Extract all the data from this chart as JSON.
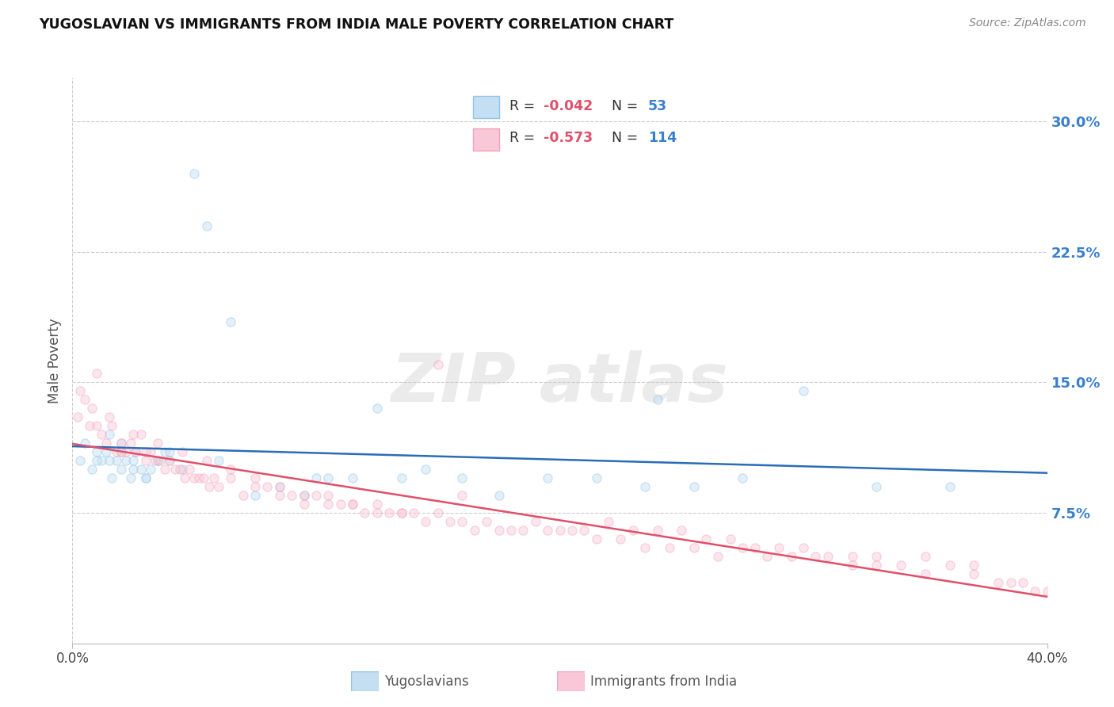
{
  "title": "YUGOSLAVIAN VS IMMIGRANTS FROM INDIA MALE POVERTY CORRELATION CHART",
  "source": "Source: ZipAtlas.com",
  "ylabel": "Male Poverty",
  "xlim": [
    0.0,
    40.0
  ],
  "ylim": [
    0.0,
    32.5
  ],
  "yticks": [
    7.5,
    15.0,
    22.5,
    30.0
  ],
  "blue_line_start_y": 11.2,
  "blue_line_end_y": 10.3,
  "pink_line_start_y": 12.0,
  "pink_line_end_y": 1.5,
  "series": [
    {
      "label": "Yugoslavians",
      "R": -0.042,
      "N": 53,
      "color": "#8ec4e8",
      "color_fill": "#c5dff2",
      "line_color": "#2a6db5",
      "x": [
        0.3,
        0.5,
        0.8,
        1.0,
        1.2,
        1.4,
        1.5,
        1.6,
        1.8,
        2.0,
        2.0,
        2.2,
        2.4,
        2.5,
        2.6,
        2.8,
        3.0,
        3.2,
        3.5,
        3.8,
        4.0,
        4.5,
        5.0,
        5.5,
        6.5,
        7.5,
        8.5,
        9.5,
        10.5,
        11.5,
        12.5,
        13.5,
        14.5,
        16.0,
        17.5,
        19.5,
        21.5,
        23.5,
        25.5,
        27.5,
        30.0,
        33.0,
        36.0,
        1.0,
        1.5,
        2.0,
        2.5,
        3.0,
        3.5,
        4.0,
        6.0,
        10.0,
        24.0
      ],
      "y": [
        10.5,
        11.5,
        10.0,
        11.0,
        10.5,
        11.0,
        12.0,
        9.5,
        10.5,
        10.0,
        11.5,
        10.5,
        9.5,
        10.0,
        11.0,
        10.0,
        9.5,
        10.0,
        10.5,
        11.0,
        10.5,
        10.0,
        27.0,
        24.0,
        18.5,
        8.5,
        9.0,
        8.5,
        9.5,
        9.5,
        13.5,
        9.5,
        10.0,
        9.5,
        8.5,
        9.5,
        9.5,
        9.0,
        9.0,
        9.5,
        14.5,
        9.0,
        9.0,
        10.5,
        10.5,
        11.0,
        10.5,
        9.5,
        10.5,
        11.0,
        10.5,
        9.5,
        14.0
      ]
    },
    {
      "label": "Immigrants from India",
      "R": -0.573,
      "N": 114,
      "color": "#f4a0b8",
      "color_fill": "#f9c8d8",
      "line_color": "#e0506a",
      "x": [
        0.2,
        0.5,
        0.7,
        1.0,
        1.2,
        1.4,
        1.6,
        1.8,
        2.0,
        2.2,
        2.4,
        2.6,
        2.8,
        3.0,
        3.2,
        3.4,
        3.6,
        3.8,
        4.0,
        4.2,
        4.4,
        4.6,
        4.8,
        5.0,
        5.2,
        5.4,
        5.6,
        5.8,
        6.0,
        6.5,
        7.0,
        7.5,
        8.0,
        8.5,
        9.0,
        9.5,
        10.0,
        10.5,
        11.0,
        11.5,
        12.0,
        12.5,
        13.0,
        13.5,
        14.0,
        15.0,
        16.0,
        17.0,
        18.0,
        19.0,
        20.0,
        21.0,
        22.0,
        23.0,
        24.0,
        25.0,
        26.0,
        27.0,
        28.0,
        29.0,
        30.0,
        31.0,
        32.0,
        33.0,
        34.0,
        35.0,
        36.0,
        37.0,
        38.0,
        39.0,
        40.0,
        0.3,
        0.8,
        1.5,
        2.5,
        3.5,
        4.5,
        5.5,
        6.5,
        7.5,
        8.5,
        9.5,
        10.5,
        11.5,
        12.5,
        13.5,
        14.5,
        15.5,
        16.5,
        17.5,
        18.5,
        19.5,
        20.5,
        21.5,
        22.5,
        23.5,
        24.5,
        25.5,
        26.5,
        27.5,
        28.5,
        29.5,
        30.5,
        32.0,
        33.0,
        35.0,
        37.0,
        38.5,
        39.5,
        1.0,
        2.0,
        3.0,
        15.0,
        16.0
      ],
      "y": [
        13.0,
        14.0,
        12.5,
        12.5,
        12.0,
        11.5,
        12.5,
        11.0,
        11.5,
        11.0,
        11.5,
        11.0,
        12.0,
        10.5,
        11.0,
        10.5,
        10.5,
        10.0,
        10.5,
        10.0,
        10.0,
        9.5,
        10.0,
        9.5,
        9.5,
        9.5,
        9.0,
        9.5,
        9.0,
        9.5,
        8.5,
        9.0,
        9.0,
        8.5,
        8.5,
        8.0,
        8.5,
        8.0,
        8.0,
        8.0,
        7.5,
        8.0,
        7.5,
        7.5,
        7.5,
        7.5,
        7.0,
        7.0,
        6.5,
        7.0,
        6.5,
        6.5,
        7.0,
        6.5,
        6.5,
        6.5,
        6.0,
        6.0,
        5.5,
        5.5,
        5.5,
        5.0,
        5.0,
        5.0,
        4.5,
        5.0,
        4.5,
        4.0,
        3.5,
        3.5,
        3.0,
        14.5,
        13.5,
        13.0,
        12.0,
        11.5,
        11.0,
        10.5,
        10.0,
        9.5,
        9.0,
        8.5,
        8.5,
        8.0,
        7.5,
        7.5,
        7.0,
        7.0,
        6.5,
        6.5,
        6.5,
        6.5,
        6.5,
        6.0,
        6.0,
        5.5,
        5.5,
        5.5,
        5.0,
        5.5,
        5.0,
        5.0,
        5.0,
        4.5,
        4.5,
        4.0,
        4.5,
        3.5,
        3.0,
        15.5,
        11.0,
        11.0,
        16.0,
        8.5
      ]
    }
  ],
  "background_color": "#ffffff",
  "grid_color": "#c8c8c8",
  "marker_size": 65,
  "marker_alpha": 0.45,
  "line_width": 1.8,
  "watermark_text": "ZIP atlas",
  "watermark_color": "#d8d8d8",
  "watermark_alpha": 0.5,
  "watermark_fontsize": 62
}
